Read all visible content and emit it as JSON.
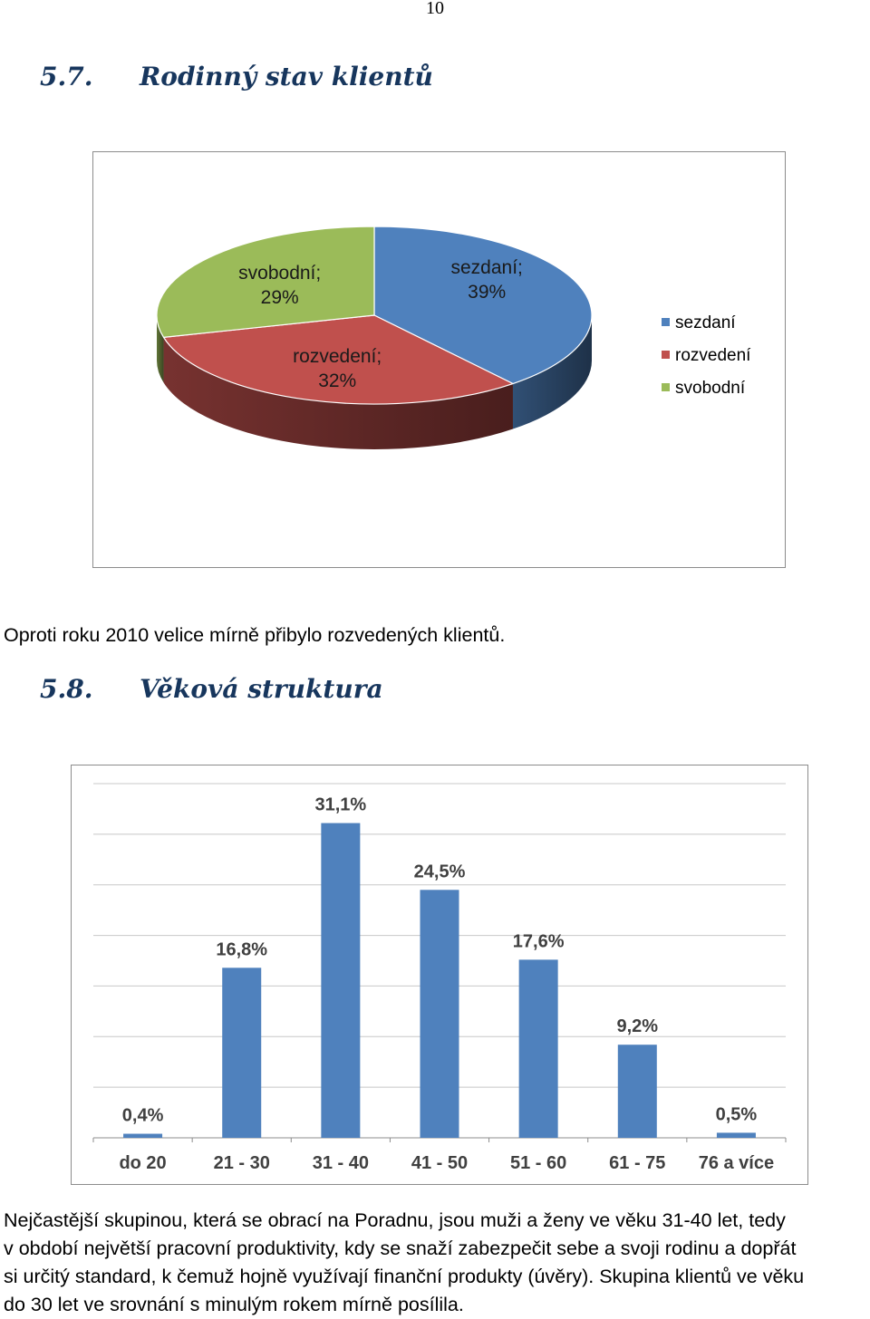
{
  "page_number": "10",
  "sections": [
    {
      "number": "5.7.",
      "title": "Rodinný stav klientů"
    },
    {
      "number": "5.8.",
      "title": "Věková struktura"
    }
  ],
  "chart_data": [
    {
      "type": "pie",
      "title": "",
      "categories": [
        "sezdaní",
        "rozvedení",
        "svobodní"
      ],
      "values": [
        39,
        32,
        29
      ],
      "data_labels": [
        [
          "sezdaní;",
          "39%"
        ],
        [
          "rozvedení;",
          "32%"
        ],
        [
          "svobodní;",
          "29%"
        ]
      ],
      "legend": {
        "placement": "right",
        "entries": [
          "sezdaní",
          "rozvedení",
          "svobodní"
        ]
      },
      "colors": [
        "#4f81bd",
        "#c0504d",
        "#9bbb59"
      ],
      "style": "3d"
    },
    {
      "type": "bar",
      "title": "",
      "xlabel": "",
      "ylabel": "",
      "categories": [
        "do 20",
        "21 - 30",
        "31 - 40",
        "41 - 50",
        "51 - 60",
        "61 - 75",
        "76 a více"
      ],
      "values": [
        0.4,
        16.8,
        31.1,
        24.5,
        17.6,
        9.2,
        0.5
      ],
      "data_labels": [
        "0,4%",
        "16,8%",
        "31,1%",
        "24,5%",
        "17,6%",
        "9,2%",
        "0,5%"
      ],
      "ylim": [
        0,
        35
      ],
      "grid": true,
      "legend": "none",
      "color": "#4f81bd"
    }
  ],
  "paragraphs": [
    {
      "lines": [
        "Oproti roku 2010 velice mírně přibylo rozvedených klientů."
      ]
    },
    {
      "lines": [
        "Nejčastější skupinou, která se obrací na Poradnu, jsou muži a ženy ve věku 31-40 let, tedy",
        "v období největší pracovní produktivity, kdy se snaží zabezpečit sebe a svoji rodinu a dopřát",
        "si určitý standard, k čemuž hojně využívají finanční produkty (úvěry). Skupina klientů ve věku",
        "do 30 let ve srovnání s minulým rokem mírně posílila."
      ]
    }
  ]
}
